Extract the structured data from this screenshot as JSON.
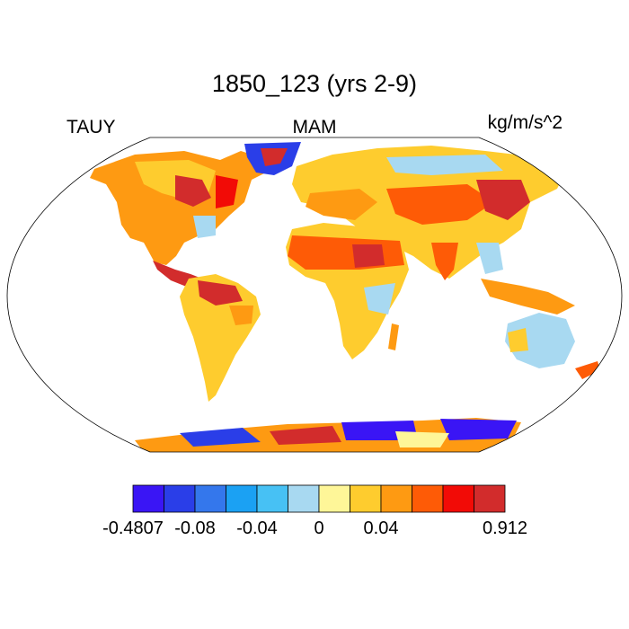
{
  "chart_data": {
    "type": "heatmap",
    "title": "1850_123 (yrs 2-9)",
    "left_label": "TAUY",
    "center_label": "MAM",
    "units": "kg/m/s^2",
    "projection": "Robinson",
    "legend_position": "bottom",
    "colorbar": {
      "colors": [
        "#3a15f5",
        "#2a3ee8",
        "#3477ec",
        "#1ba1f3",
        "#47c1f4",
        "#a8d9f1",
        "#fef698",
        "#fecc2e",
        "#fe9a12",
        "#fe5b06",
        "#f20b06",
        "#d22c2c"
      ],
      "tick_labels": [
        "-0.4807",
        "-0.08",
        "-0.04",
        "0",
        "0.04",
        "0.912"
      ],
      "tick_boundaries": [
        0,
        2,
        4,
        6,
        8,
        12
      ]
    }
  }
}
